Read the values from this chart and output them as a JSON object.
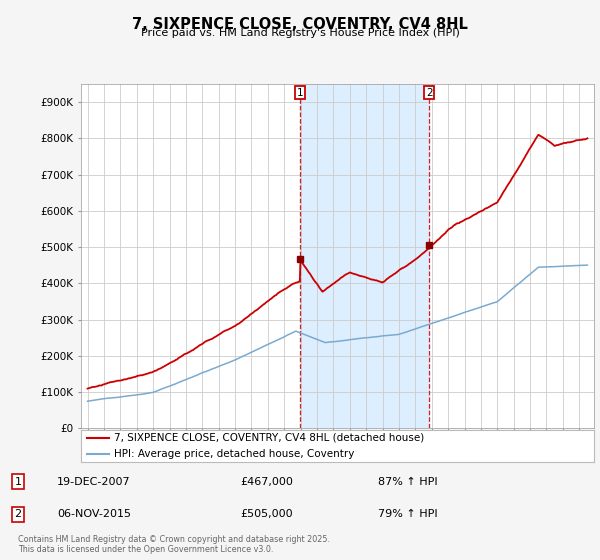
{
  "title": "7, SIXPENCE CLOSE, COVENTRY, CV4 8HL",
  "subtitle": "Price paid vs. HM Land Registry's House Price Index (HPI)",
  "background_color": "#f5f5f5",
  "plot_bg_color": "#ffffff",
  "ylim": [
    0,
    950000
  ],
  "yticks": [
    0,
    100000,
    200000,
    300000,
    400000,
    500000,
    600000,
    700000,
    800000,
    900000
  ],
  "ytick_labels": [
    "£0",
    "£100K",
    "£200K",
    "£300K",
    "£400K",
    "£500K",
    "£600K",
    "£700K",
    "£800K",
    "£900K"
  ],
  "sale1_date": "19-DEC-2007",
  "sale1_price": 467000,
  "sale1_hpi": "87% ↑ HPI",
  "sale2_date": "06-NOV-2015",
  "sale2_price": 505000,
  "sale2_hpi": "79% ↑ HPI",
  "sale1_x": 2007.96,
  "sale2_x": 2015.84,
  "legend_house": "7, SIXPENCE CLOSE, COVENTRY, CV4 8HL (detached house)",
  "legend_hpi": "HPI: Average price, detached house, Coventry",
  "footer": "Contains HM Land Registry data © Crown copyright and database right 2025.\nThis data is licensed under the Open Government Licence v3.0.",
  "house_color": "#cc0000",
  "hpi_color": "#7aaad0",
  "shaded_color": "#ddeeff",
  "grid_color": "#cccccc",
  "xlim_left": 1994.6,
  "xlim_right": 2025.9
}
